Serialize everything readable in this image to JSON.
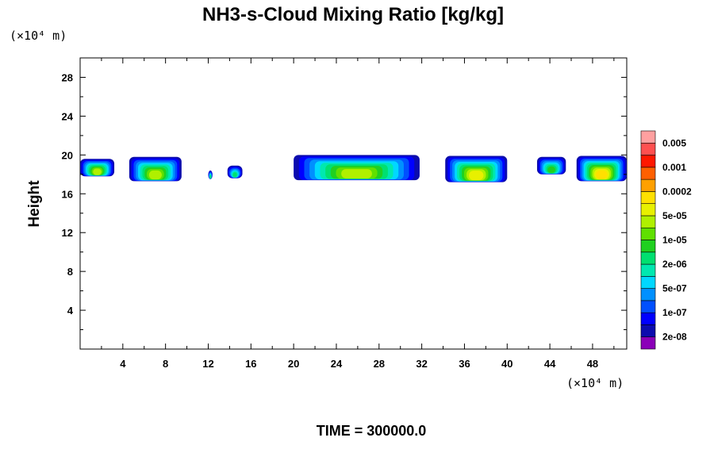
{
  "chart_data": {
    "type": "heatmap",
    "title": "NH3-s-Cloud Mixing Ratio [kg/kg]",
    "xlabel": "",
    "ylabel": "Height",
    "x_unit": "(×10⁴ m)",
    "y_unit": "(×10⁴ m)",
    "xlim": [
      0,
      51.2
    ],
    "ylim": [
      0,
      30
    ],
    "x_ticks": [
      4,
      8,
      12,
      16,
      20,
      24,
      28,
      32,
      36,
      40,
      44,
      48
    ],
    "y_ticks": [
      4,
      8,
      12,
      16,
      20,
      24,
      28
    ],
    "colorbar": {
      "levels": [
        "2e-08",
        "1e-07",
        "5e-07",
        "2e-06",
        "1e-05",
        "5e-05",
        "0.0002",
        "0.001",
        "0.005"
      ],
      "colors": [
        "#8b00b8",
        "#0c0cae",
        "#0000ff",
        "#0050ff",
        "#0090ff",
        "#00d8ff",
        "#00e8b0",
        "#00e070",
        "#20d020",
        "#60e000",
        "#b0f000",
        "#e8f000",
        "#ffe000",
        "#ffa000",
        "#ff6000",
        "#ff1800",
        "#ff5050",
        "#ffa0a0"
      ]
    },
    "cloud_regions": [
      {
        "x0": 0.0,
        "x1": 3.2,
        "y_base": 17.8,
        "y_top": 19.6,
        "peak_level": 10
      },
      {
        "x0": 4.6,
        "x1": 9.5,
        "y_base": 17.3,
        "y_top": 19.8,
        "peak_level": 10
      },
      {
        "x0": 12.0,
        "x1": 12.4,
        "y_base": 17.5,
        "y_top": 18.4,
        "peak_level": 7
      },
      {
        "x0": 13.8,
        "x1": 15.2,
        "y_base": 17.6,
        "y_top": 18.9,
        "peak_level": 7
      },
      {
        "x0": 20.0,
        "x1": 31.8,
        "y_base": 17.4,
        "y_top": 20.0,
        "peak_level": 10
      },
      {
        "x0": 34.2,
        "x1": 40.0,
        "y_base": 17.2,
        "y_top": 19.9,
        "peak_level": 11
      },
      {
        "x0": 42.8,
        "x1": 45.5,
        "y_base": 18.0,
        "y_top": 19.8,
        "peak_level": 8
      },
      {
        "x0": 46.5,
        "x1": 51.2,
        "y_base": 17.3,
        "y_top": 19.9,
        "peak_level": 12
      }
    ]
  },
  "footer": {
    "time_label": "TIME = 300000.0"
  }
}
